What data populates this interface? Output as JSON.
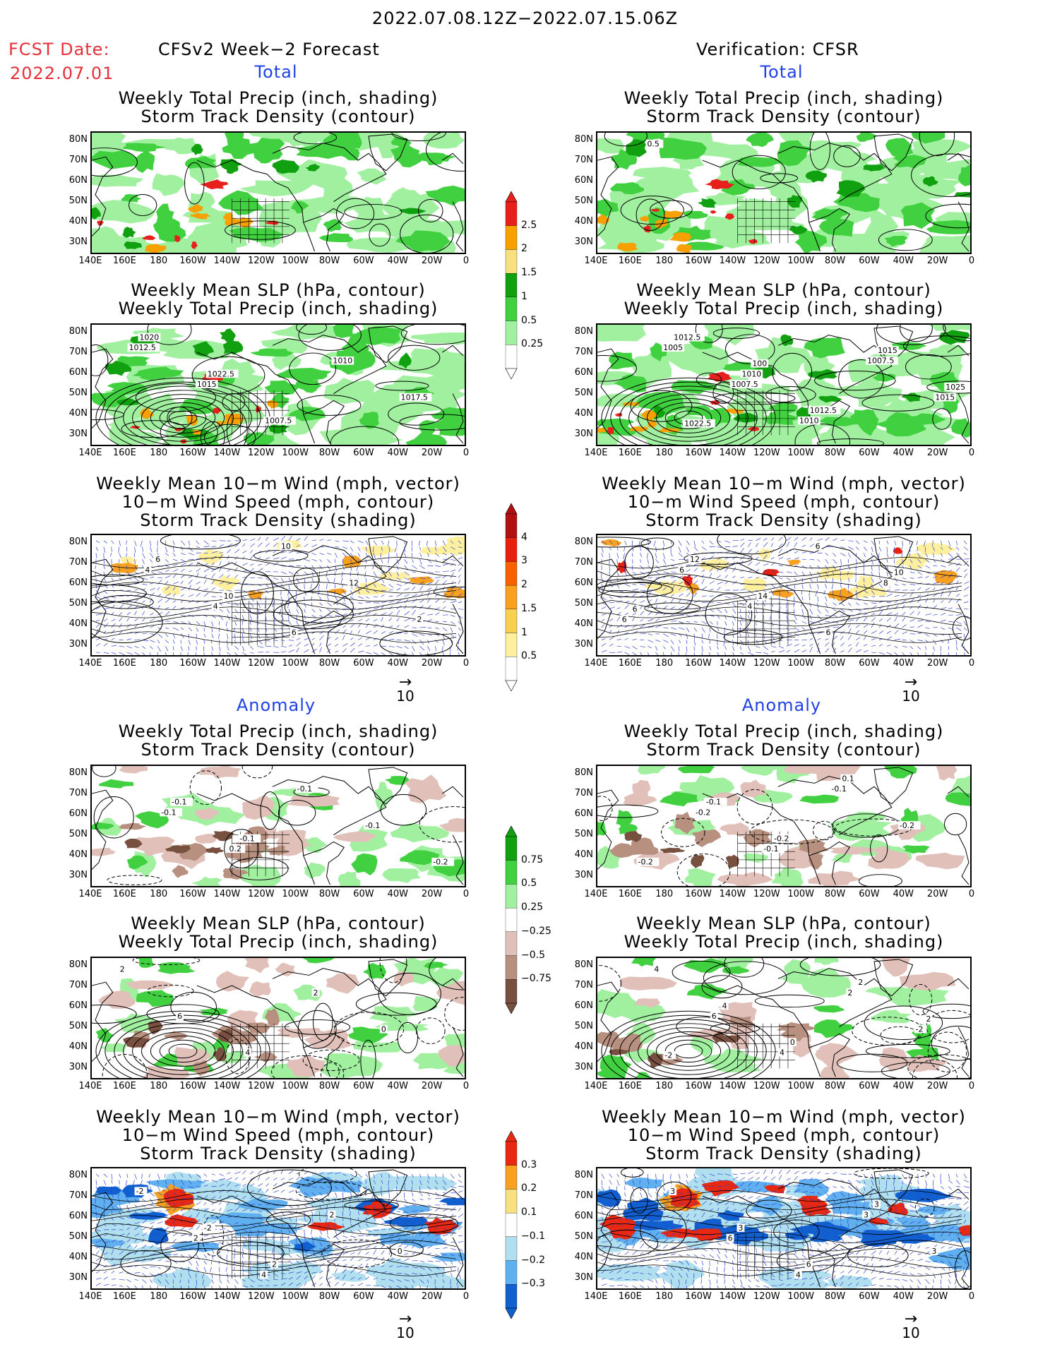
{
  "header": {
    "title": "2022.07.08.12Z−2022.07.15.06Z",
    "fcst_label": "FCST Date:",
    "fcst_date": "2022.07.01",
    "left_heading": "CFSv2 Week−2 Forecast",
    "right_heading": "Verification: CFSR",
    "total": "Total",
    "anomaly": "Anomaly"
  },
  "panel_titles": {
    "precip_storm": [
      "Weekly Total Precip (inch, shading)",
      "Storm Track Density (contour)"
    ],
    "slp_precip": [
      "Weekly Mean SLP (hPa, contour)",
      "Weekly Total Precip (inch, shading)"
    ],
    "wind_storm": [
      "Weekly Mean 10−m Wind (mph, vector)",
      "10−m Wind Speed (mph, contour)",
      "Storm Track Density (shading)"
    ]
  },
  "axes": {
    "lat_labels": [
      "80N",
      "70N",
      "60N",
      "50N",
      "40N",
      "30N"
    ],
    "lon_labels": [
      "140E",
      "160E",
      "180",
      "160W",
      "140W",
      "120W",
      "100W",
      "80W",
      "60W",
      "40W",
      "20W",
      "0"
    ]
  },
  "vector_ref": {
    "value": "10",
    "arrow": "→"
  },
  "colorbars": {
    "total_precip": {
      "labels": [
        "2.5",
        "2",
        "1.5",
        "1",
        "0.5",
        "0.25"
      ],
      "colors": [
        "#e8201c",
        "#f8a000",
        "#f8e080",
        "#10a010",
        "#40d040",
        "#a0f0a0"
      ]
    },
    "total_storm": {
      "labels": [
        "4",
        "3",
        "2",
        "1.5",
        "1",
        "0.5"
      ],
      "colors": [
        "#b01010",
        "#e82010",
        "#f86000",
        "#f8a020",
        "#f8d050",
        "#fff0a0"
      ]
    },
    "anom_precip": {
      "labels": [
        "0.75",
        "0.5",
        "0.25",
        "−0.25",
        "−0.5",
        "−0.75"
      ],
      "colors_pos": [
        "#10a010",
        "#40d040",
        "#a0f0a0"
      ],
      "colors_neg": [
        "#e0c0b8",
        "#b89080",
        "#785040"
      ]
    },
    "anom_storm": {
      "labels": [
        "0.3",
        "0.2",
        "0.1",
        "−0.1",
        "−0.2",
        "−0.3"
      ],
      "colors_pos": [
        "#e82810",
        "#f8a020",
        "#f8e080"
      ],
      "colors_neg": [
        "#b0e0f0",
        "#60b0f0",
        "#1060d0"
      ]
    }
  },
  "contour_labels": {
    "fc_slp_total": [
      "1012.5",
      "1015",
      "1007.5",
      "1010",
      "1017.5",
      "1020",
      "1022.5"
    ],
    "ob_slp_total": [
      "1005",
      "1007.5",
      "1010",
      "1007.5",
      "1015",
      "1012.5",
      "1010",
      "1012.5",
      "1015",
      "1025",
      "1022.5",
      "100"
    ],
    "ob_precip_total": [
      "0.5"
    ],
    "fc_wind_total": [
      "4",
      "4",
      "10",
      "12",
      "2",
      "6",
      "10",
      "6"
    ],
    "ob_wind_total": [
      "6",
      "4",
      "6",
      "8",
      "6",
      "12",
      "14",
      "6",
      "10",
      "6"
    ],
    "fc_precip_anom": [
      "-0.1",
      "0.2",
      "-0.1",
      "-0.1",
      "-0.2",
      "-0.1",
      "-0.1"
    ],
    "ob_precip_anom": [
      "-0.2",
      "-0.1",
      "-0.1",
      "-0.2",
      "-0.2",
      "-0.1",
      "-0.2",
      "0.1"
    ],
    "fc_slp_anom": [
      "6",
      "4",
      "2",
      "0",
      "2"
    ],
    "ob_slp_anom": [
      "6",
      "4",
      "2",
      "-2",
      "4",
      "4",
      "0",
      "2",
      "2",
      "-2"
    ],
    "fc_wind_anom": [
      "2",
      "4",
      "2",
      "0",
      "-2",
      "-2",
      "2"
    ],
    "ob_wind_anom": [
      "6",
      "4",
      "3",
      "3",
      "3",
      "3",
      "6",
      "3"
    ]
  }
}
